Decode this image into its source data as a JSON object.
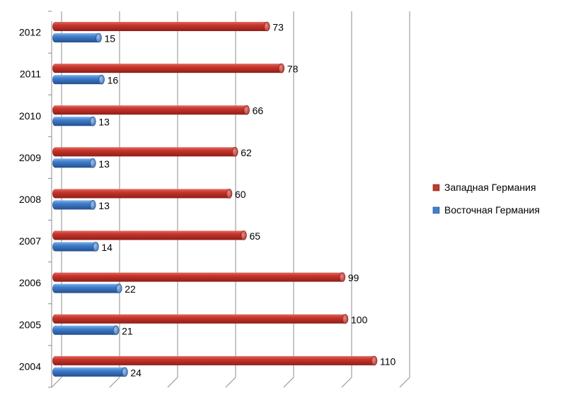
{
  "chart_data": {
    "type": "bar",
    "orientation": "horizontal",
    "categories": [
      "2004",
      "2005",
      "2006",
      "2007",
      "2008",
      "2009",
      "2010",
      "2011",
      "2012"
    ],
    "series": [
      {
        "name": "Западная Германия",
        "values": [
          110,
          100,
          99,
          65,
          60,
          62,
          66,
          78,
          73
        ],
        "color": "#c0392f"
      },
      {
        "name": "Восточная Германия",
        "values": [
          24,
          21,
          22,
          14,
          13,
          13,
          13,
          16,
          15
        ],
        "color": "#3f7fcc"
      }
    ],
    "xlim": [
      0,
      120
    ],
    "x_gridline_step": 20,
    "x_tick_labels_shown": false,
    "grid": true,
    "legend": "right",
    "data_labels": true,
    "style": "3d-cylinder"
  }
}
